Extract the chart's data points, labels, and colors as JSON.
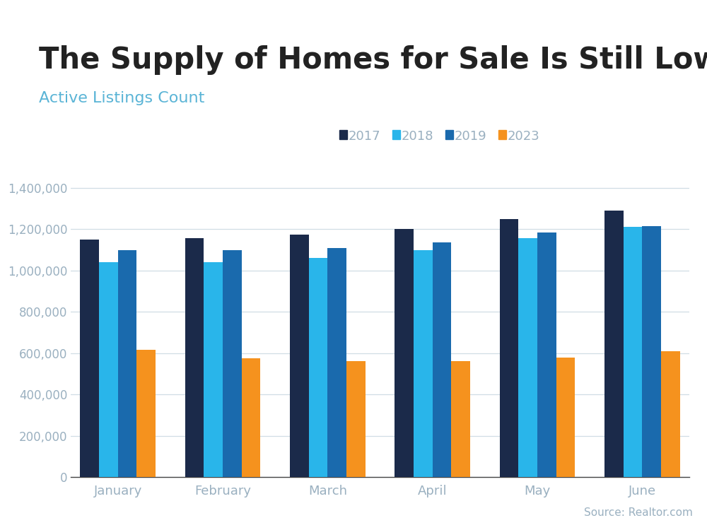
{
  "title": "The Supply of Homes for Sale Is Still Low",
  "subtitle": "Active Listings Count",
  "source": "Source: Realtor.com",
  "categories": [
    "January",
    "February",
    "March",
    "April",
    "May",
    "June"
  ],
  "series": {
    "2017": [
      1150000,
      1155000,
      1175000,
      1200000,
      1250000,
      1290000
    ],
    "2018": [
      1040000,
      1040000,
      1060000,
      1100000,
      1155000,
      1210000
    ],
    "2019": [
      1100000,
      1100000,
      1110000,
      1135000,
      1185000,
      1215000
    ],
    "2023": [
      615000,
      575000,
      560000,
      560000,
      580000,
      610000
    ]
  },
  "colors": {
    "2017": "#1b2a4a",
    "2018": "#29b5ea",
    "2019": "#1a6aad",
    "2023": "#f5921e"
  },
  "legend_labels": [
    "2017",
    "2018",
    "2019",
    "2023"
  ],
  "ylim": [
    0,
    1450000
  ],
  "yticks": [
    0,
    200000,
    400000,
    600000,
    800000,
    1000000,
    1200000,
    1400000
  ],
  "background_color": "#ffffff",
  "header_bar_color": "#4fc3e8",
  "title_fontsize": 30,
  "subtitle_fontsize": 16,
  "subtitle_color": "#5ab4d6",
  "tick_color": "#9ab0c0",
  "source_fontsize": 11,
  "source_color": "#9ab0c0",
  "legend_color": "#9ab0c0"
}
